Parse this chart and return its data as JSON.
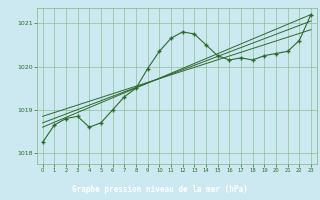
{
  "title": "Graphe pression niveau de la mer (hPa)",
  "bg_color": "#cce8f0",
  "grid_color": "#7db87d",
  "line_color": "#2d6a2d",
  "label_bg": "#2d6a2d",
  "label_fg": "#ffffff",
  "xlim": [
    -0.5,
    23.5
  ],
  "ylim": [
    1017.75,
    1021.35
  ],
  "yticks": [
    1018,
    1019,
    1020,
    1021
  ],
  "xticks": [
    0,
    1,
    2,
    3,
    4,
    5,
    6,
    7,
    8,
    9,
    10,
    11,
    12,
    13,
    14,
    15,
    16,
    17,
    18,
    19,
    20,
    21,
    22,
    23
  ],
  "main_x": [
    0,
    1,
    2,
    3,
    4,
    5,
    6,
    7,
    8,
    9,
    10,
    11,
    12,
    13,
    14,
    15,
    16,
    17,
    18,
    19,
    20,
    21,
    22,
    23
  ],
  "main_y": [
    1018.25,
    1018.65,
    1018.8,
    1018.85,
    1018.6,
    1018.7,
    1019.0,
    1019.3,
    1019.5,
    1019.95,
    1020.35,
    1020.65,
    1020.8,
    1020.75,
    1020.5,
    1020.25,
    1020.15,
    1020.2,
    1020.15,
    1020.25,
    1020.3,
    1020.35,
    1020.6,
    1021.2
  ],
  "trend1_x": [
    0,
    23
  ],
  "trend1_y": [
    1018.85,
    1020.85
  ],
  "trend2_x": [
    0,
    23
  ],
  "trend2_y": [
    1018.7,
    1021.05
  ],
  "trend3_x": [
    0,
    23
  ],
  "trend3_y": [
    1018.6,
    1021.2
  ]
}
